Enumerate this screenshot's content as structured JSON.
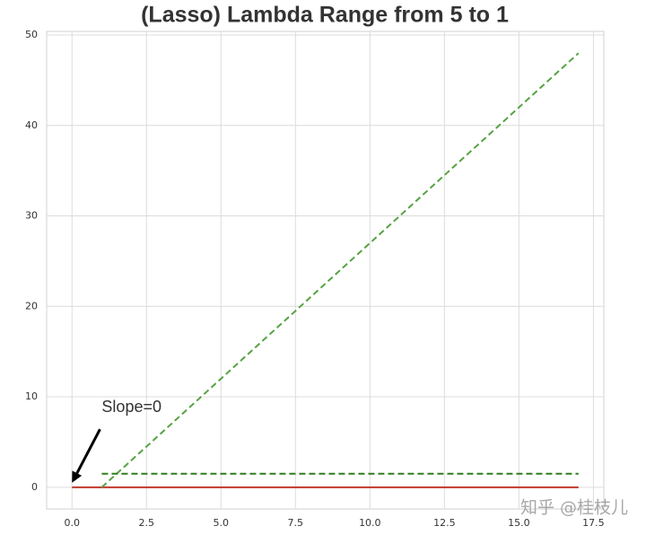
{
  "chart_data": {
    "type": "line",
    "title": "(Lasso) Lambda Range from 5 to 1",
    "series": [
      {
        "color": "#c0392b",
        "dash": "solid",
        "x": [
          0,
          17
        ],
        "values": [
          0,
          0
        ]
      },
      {
        "color": "#55a343",
        "dash": "dashed",
        "x": [
          1,
          17
        ],
        "values": [
          0,
          48
        ]
      },
      {
        "color": "#2e7d1f",
        "dash": "dashed",
        "x": [
          1,
          17
        ],
        "values": [
          1.5,
          1.5
        ]
      }
    ],
    "xlim": [
      -0.85,
      17.85
    ],
    "ylim": [
      -2.4,
      50.4
    ],
    "xticks": [
      {
        "value": 0,
        "label": "0.0"
      },
      2.5,
      {
        "value": 5,
        "label": "5.0"
      },
      7.5,
      {
        "value": 10,
        "label": "10.0"
      },
      12.5,
      {
        "value": 15,
        "label": "15.0"
      },
      17.5
    ],
    "yticks": [
      0,
      10,
      20,
      30,
      40,
      50
    ],
    "grid": true,
    "annotation": {
      "text": "Slope=0",
      "xy": [
        0,
        0.5
      ],
      "xytext": [
        1,
        8
      ]
    },
    "watermark": "知乎 @桂枝儿"
  }
}
